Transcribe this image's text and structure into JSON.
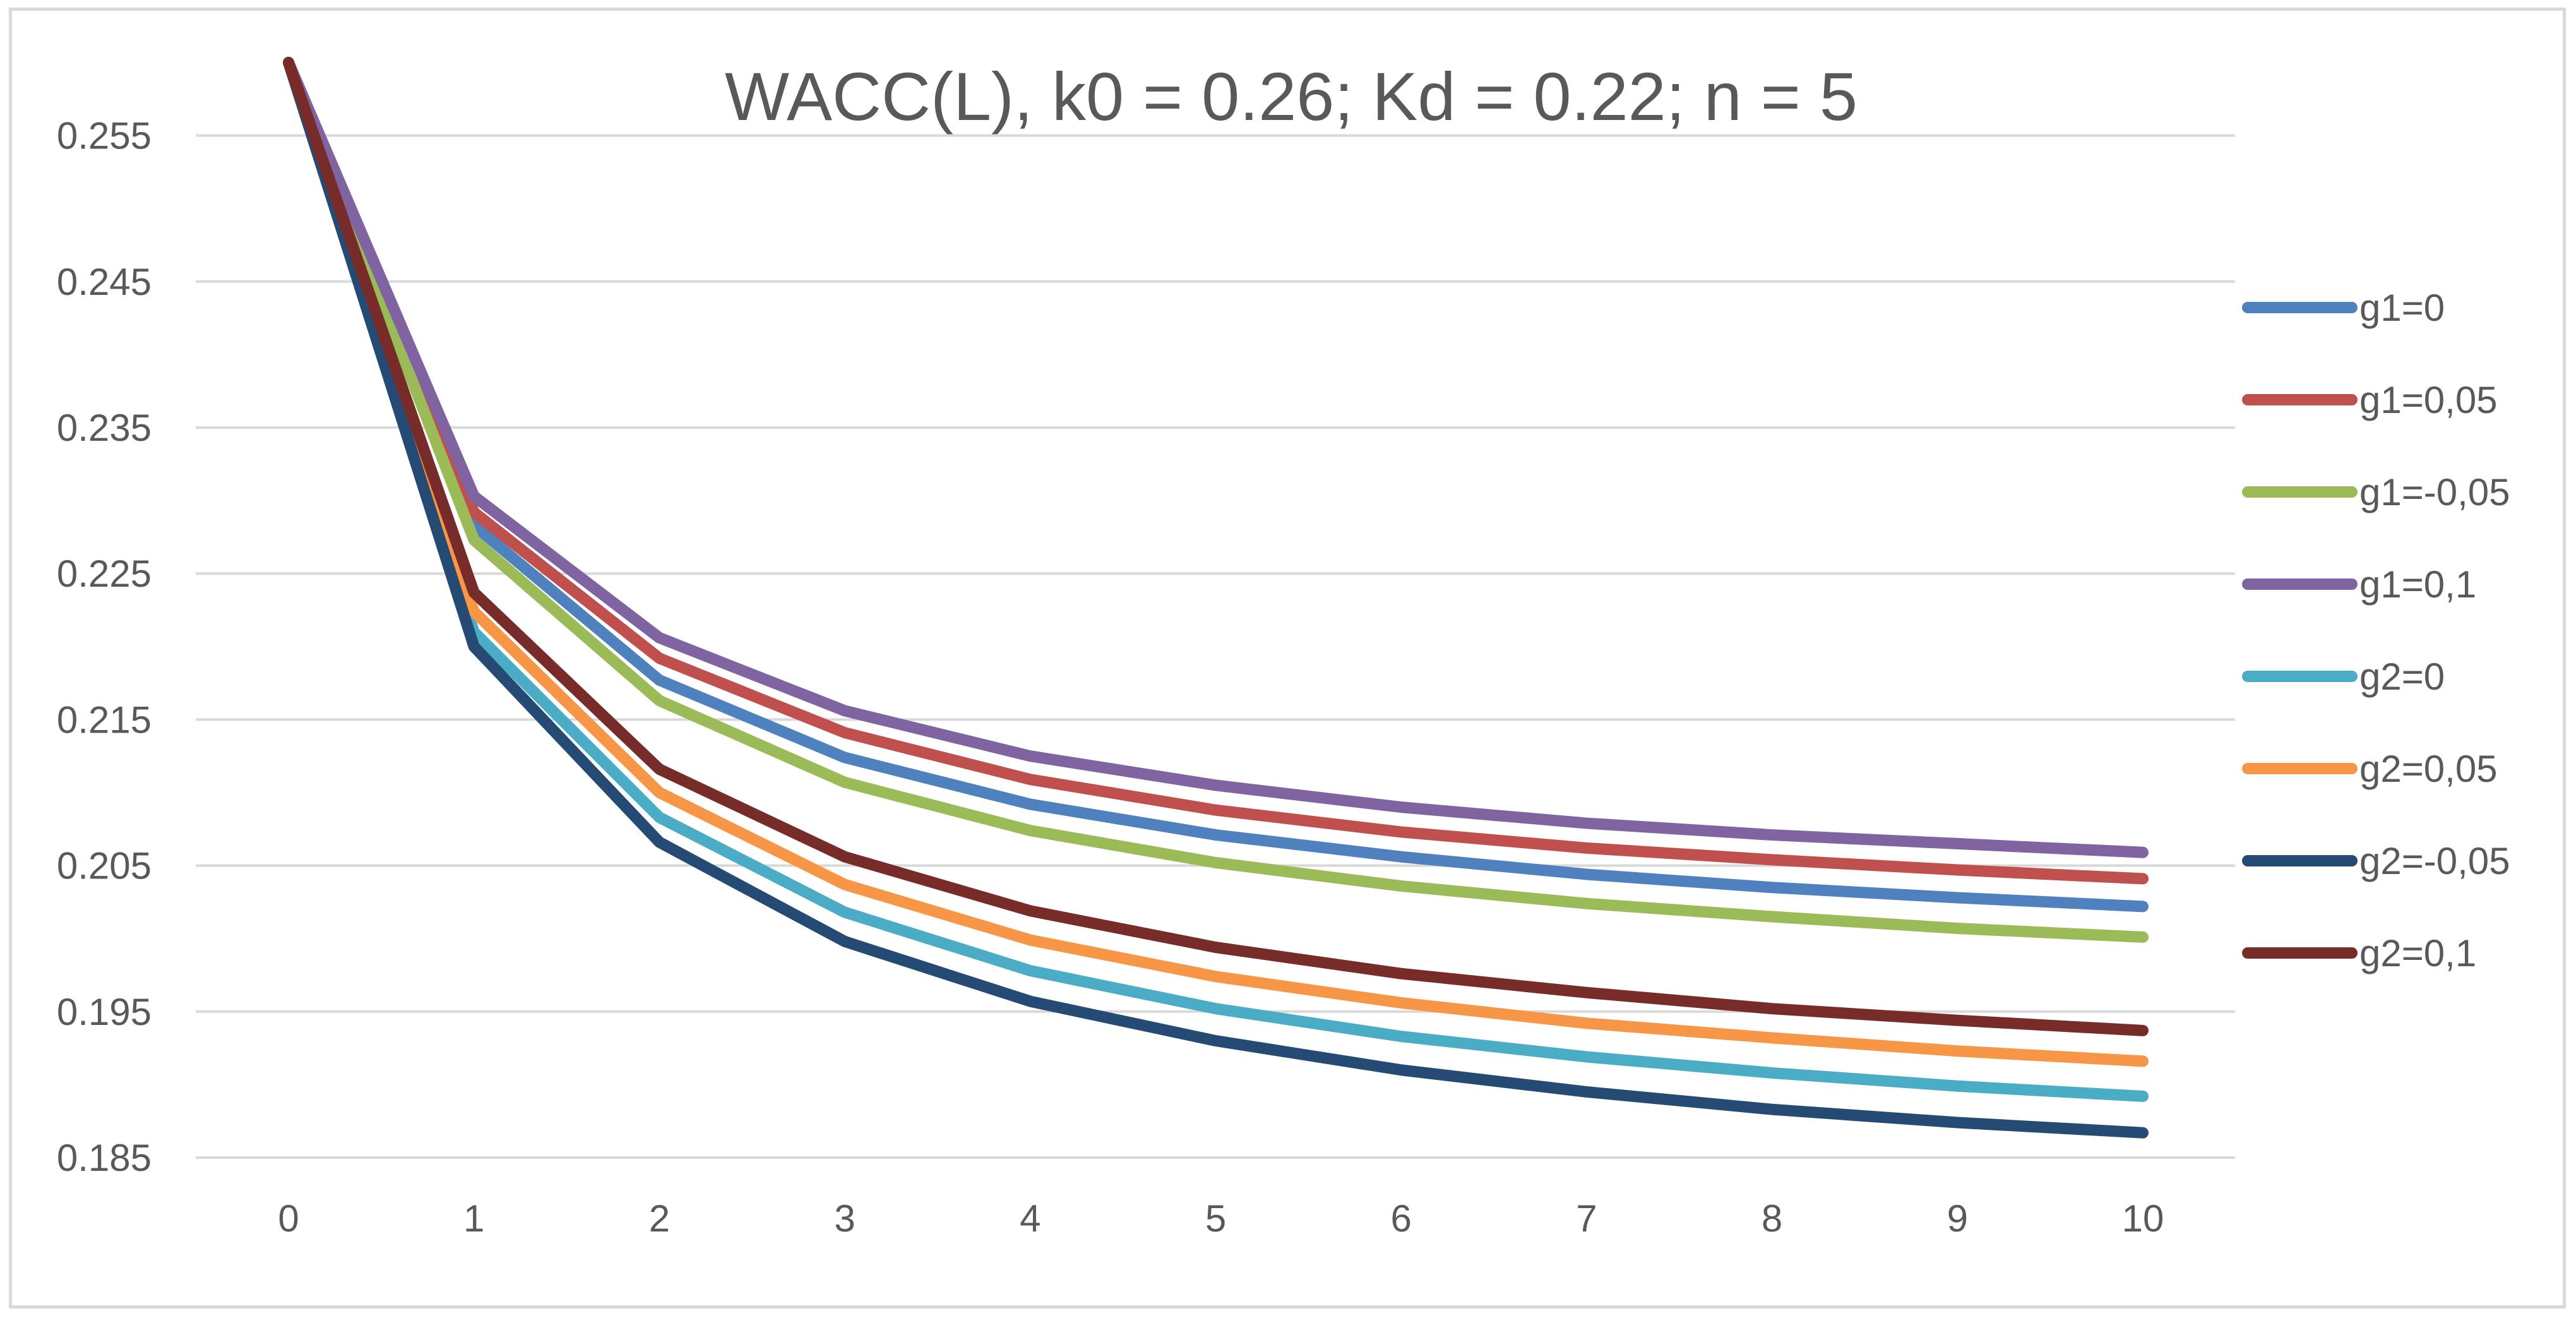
{
  "chart_data": {
    "type": "line",
    "title": "WACC(L), k0 = 0.26; Kd = 0.22; n = 5",
    "xlabel": "",
    "ylabel": "",
    "x": [
      0,
      1,
      2,
      3,
      4,
      5,
      6,
      7,
      8,
      9,
      10
    ],
    "x_tick_labels": [
      "0",
      "1",
      "2",
      "3",
      "4",
      "5",
      "6",
      "7",
      "8",
      "9",
      "10"
    ],
    "ylim": [
      0.185,
      0.26
    ],
    "y_ticks": [
      0.185,
      0.195,
      0.205,
      0.215,
      0.225,
      0.235,
      0.245,
      0.255
    ],
    "y_tick_labels": [
      "0.185",
      "0.195",
      "0.205",
      "0.215",
      "0.225",
      "0.235",
      "0.245",
      "0.255"
    ],
    "grid": true,
    "legend_position": "right",
    "series": [
      {
        "name": "g1=0",
        "color": "#4E81BD",
        "values": [
          0.26,
          0.2283,
          0.2177,
          0.2124,
          0.2092,
          0.2071,
          0.2056,
          0.2044,
          0.2035,
          0.2028,
          0.2022
        ]
      },
      {
        "name": "g1=0,05",
        "color": "#C0504D",
        "values": [
          0.26,
          0.2292,
          0.2192,
          0.2141,
          0.2109,
          0.2088,
          0.2073,
          0.2062,
          0.2054,
          0.2047,
          0.2041
        ]
      },
      {
        "name": "g1=-0,05",
        "color": "#9BBB59",
        "values": [
          0.26,
          0.2273,
          0.2163,
          0.2107,
          0.2074,
          0.2052,
          0.2036,
          0.2024,
          0.2015,
          0.2007,
          0.2001
        ]
      },
      {
        "name": "g1=0,1",
        "color": "#8064A2",
        "values": [
          0.26,
          0.2303,
          0.2206,
          0.2156,
          0.2125,
          0.2105,
          0.209,
          0.2079,
          0.2071,
          0.2065,
          0.2059
        ]
      },
      {
        "name": "g2=0",
        "color": "#4BACC6",
        "values": [
          0.26,
          0.221,
          0.2083,
          0.2018,
          0.1978,
          0.1952,
          0.1933,
          0.1919,
          0.1908,
          0.1899,
          0.1892
        ]
      },
      {
        "name": "g2=0,05",
        "color": "#F79646",
        "values": [
          0.26,
          0.2224,
          0.21,
          0.2037,
          0.1999,
          0.1974,
          0.1956,
          0.1942,
          0.1932,
          0.1923,
          0.1916
        ]
      },
      {
        "name": "g2=-0,05",
        "color": "#254B74",
        "values": [
          0.26,
          0.22,
          0.2066,
          0.1998,
          0.1957,
          0.193,
          0.191,
          0.1895,
          0.1883,
          0.1874,
          0.1867
        ]
      },
      {
        "name": "g2=0,1",
        "color": "#772C2A",
        "values": [
          0.26,
          0.2237,
          0.2116,
          0.2056,
          0.2019,
          0.1994,
          0.1976,
          0.1963,
          0.1952,
          0.1944,
          0.1937
        ]
      }
    ]
  }
}
